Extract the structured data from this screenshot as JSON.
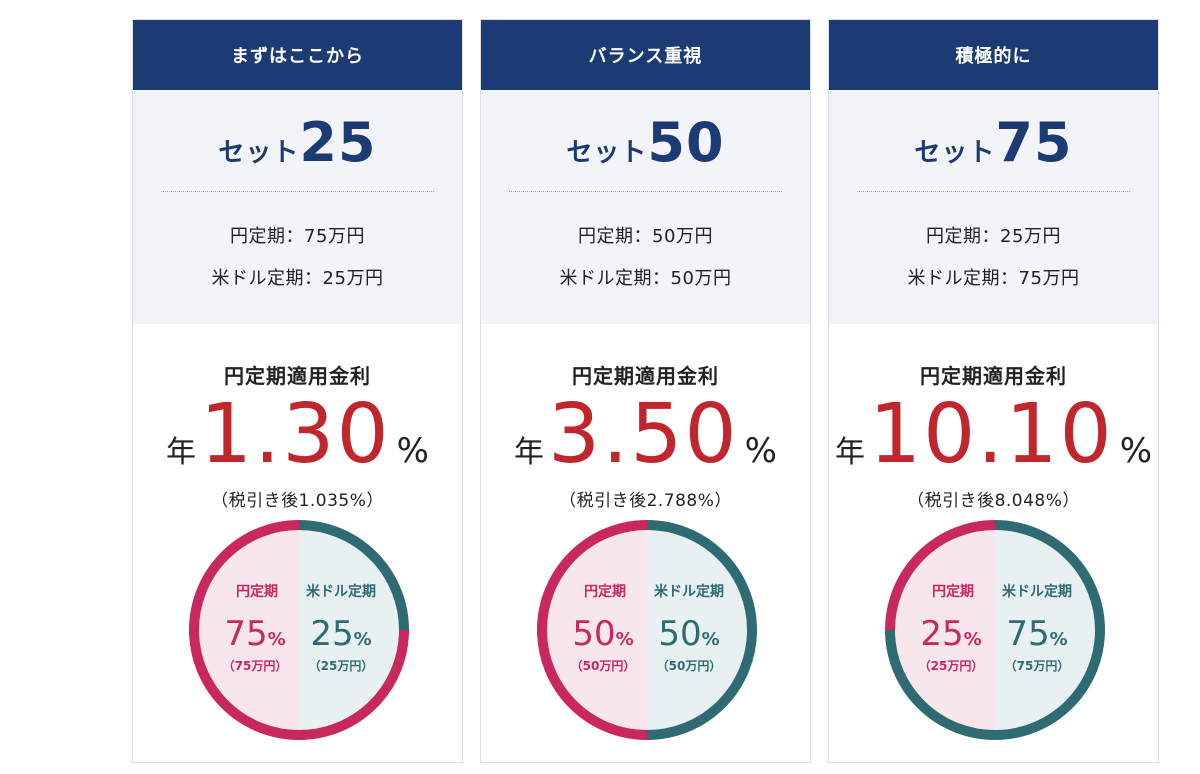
{
  "plans": [
    {
      "header": "まずはここから",
      "set_word": "セット",
      "set_num": "25",
      "yen_alloc": "円定期：75万円",
      "usd_alloc": "米ドル定期：25万円",
      "rate_label": "円定期適用金利",
      "rate_prefix": "年",
      "rate": "1.30",
      "rate_unit": "%",
      "after_tax": "（税引き後1.035%）",
      "yen_share": 75,
      "yen_name": "円定期",
      "yen_pct": "75",
      "yen_amount": "（75万円）",
      "usd_name": "米ドル定期",
      "usd_pct": "25",
      "usd_amount": "（25万円）",
      "pct_sign": "%"
    },
    {
      "header": "バランス重視",
      "set_word": "セット",
      "set_num": "50",
      "yen_alloc": "円定期：50万円",
      "usd_alloc": "米ドル定期：50万円",
      "rate_label": "円定期適用金利",
      "rate_prefix": "年",
      "rate": "3.50",
      "rate_unit": "%",
      "after_tax": "（税引き後2.788%）",
      "yen_share": 50,
      "yen_name": "円定期",
      "yen_pct": "50",
      "yen_amount": "（50万円）",
      "usd_name": "米ドル定期",
      "usd_pct": "50",
      "usd_amount": "（50万円）",
      "pct_sign": "%"
    },
    {
      "header": "積極的に",
      "set_word": "セット",
      "set_num": "75",
      "yen_alloc": "円定期：25万円",
      "usd_alloc": "米ドル定期：75万円",
      "rate_label": "円定期適用金利",
      "rate_prefix": "年",
      "rate": "10.10",
      "rate_unit": "%",
      "after_tax": "（税引き後8.048%）",
      "yen_share": 25,
      "yen_name": "円定期",
      "yen_pct": "25",
      "yen_amount": "（25万円）",
      "usd_name": "米ドル定期",
      "usd_pct": "75",
      "usd_amount": "（75万円）",
      "pct_sign": "%"
    }
  ],
  "colors": {
    "header_bg": "#1c3a73",
    "yen": "#c8285c",
    "usd": "#2e6b72",
    "yen_fill": "#f8e6ed",
    "usd_fill": "#e9f0f2",
    "rate": "#c0272d"
  }
}
